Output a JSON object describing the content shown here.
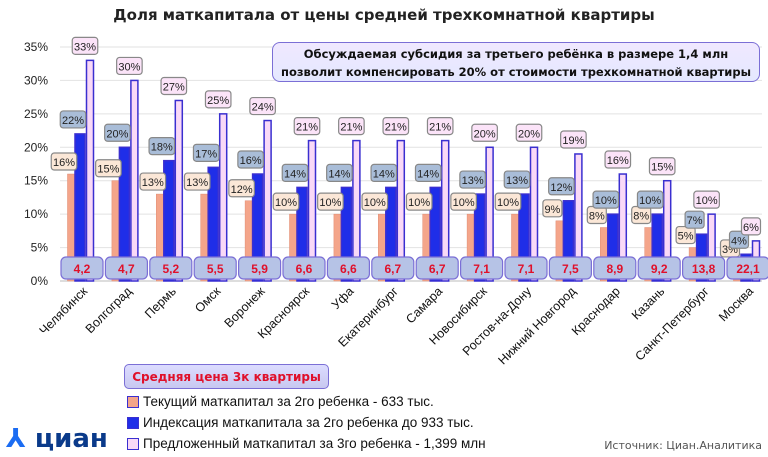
{
  "chart_data": {
    "type": "bar",
    "title": "Доля маткапитала от цены средней трехкомнатной квартиры",
    "categories": [
      "Челябинск",
      "Волгоград",
      "Пермь",
      "Омск",
      "Воронеж",
      "Красноярск",
      "Уфа",
      "Екатеринбург",
      "Самара",
      "Новосибирск",
      "Ростов-на-Дону",
      "Нижний Новгород",
      "Краснодар",
      "Казань",
      "Санкт-Петербург",
      "Москва"
    ],
    "series": [
      {
        "name": "Текущий маткапитал за 2го ребенка - 633 тыс.",
        "color": "#f4a58a",
        "values": [
          16,
          15,
          13,
          13,
          12,
          10,
          10,
          10,
          10,
          10,
          10,
          9,
          8,
          8,
          5,
          3
        ]
      },
      {
        "name": "Индексация маткапитала за 2го ребенка до 933 тыс.",
        "color": "#1f2ee8",
        "values": [
          22,
          20,
          18,
          17,
          16,
          14,
          14,
          14,
          14,
          13,
          13,
          12,
          10,
          10,
          7,
          4
        ]
      },
      {
        "name": "Предложенный маткапитал за 3го ребенка - 1,399 млн",
        "color": "#f9d9f7",
        "values": [
          33,
          30,
          27,
          25,
          24,
          21,
          21,
          21,
          21,
          20,
          20,
          19,
          16,
          15,
          10,
          6
        ]
      }
    ],
    "prices": [
      "4,2",
      "4,7",
      "5,2",
      "5,5",
      "5,9",
      "6,6",
      "6,6",
      "6,7",
      "6,7",
      "7,1",
      "7,1",
      "7,5",
      "8,9",
      "9,2",
      "13,8",
      "22,1"
    ],
    "price_label": "Средняя цена 3к квартиры",
    "yticks": [
      "0%",
      "5%",
      "10%",
      "15%",
      "20%",
      "25%",
      "30%",
      "35%"
    ],
    "ylim": [
      0,
      35
    ],
    "grid": true,
    "legend": "bottom-left",
    "annotation": "Обсуждаемая субсидия за третьего ребёнка в размере 1,4 млн позволит компенсировать 20% от стоимости трехкомнатной квартиры"
  },
  "logo": "циан",
  "source": "Источник: Циан.Аналитика"
}
